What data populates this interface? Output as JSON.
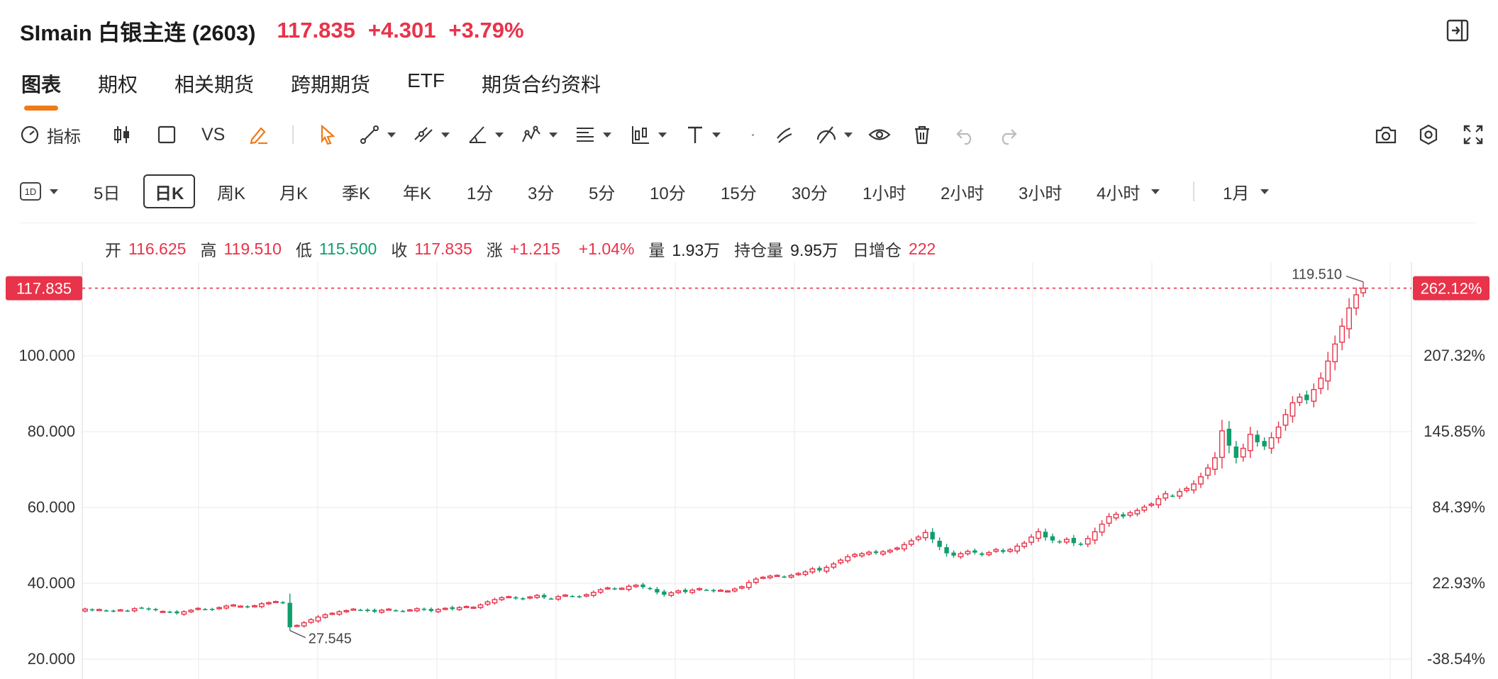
{
  "header": {
    "title": "SImain 白银主连 (2603)",
    "price": "117.835",
    "change": "+4.301",
    "change_pct": "+3.79%"
  },
  "tabs": [
    "图表",
    "期权",
    "相关期货",
    "跨期期货",
    "ETF",
    "期货合约资料"
  ],
  "toolbar": {
    "indicator_label": "指标",
    "vs_label": "VS"
  },
  "periods": {
    "interval_icon_text": "1D",
    "items": [
      "5日",
      "日K",
      "周K",
      "月K",
      "季K",
      "年K",
      "1分",
      "3分",
      "5分",
      "10分",
      "15分",
      "30分",
      "1小时",
      "2小时",
      "3小时",
      "4小时"
    ],
    "range": "1月"
  },
  "ohlc": {
    "open_label": "开",
    "open": "116.625",
    "high_label": "高",
    "high": "119.510",
    "low_label": "低",
    "low": "115.500",
    "close_label": "收",
    "close": "117.835",
    "change_label": "涨",
    "change": "+1.215",
    "change_pct": "+1.04%",
    "volume_label": "量",
    "volume": "1.93万",
    "oi_label": "持仓量",
    "oi": "9.95万",
    "oi_change_label": "日增仓",
    "oi_change": "222"
  },
  "colors": {
    "up": "#e8334a",
    "down": "#119e6d",
    "accent": "#f07a17"
  },
  "chart_data": {
    "type": "candlestick",
    "y_ticks_left": [
      "100.000",
      "80.000",
      "60.000",
      "40.000",
      "20.000"
    ],
    "y_ticks_right": [
      "207.32%",
      "145.85%",
      "84.39%",
      "22.93%",
      "-38.54%"
    ],
    "ylim": [
      17,
      126
    ],
    "current_price_label": "117.835",
    "current_pct_label": "262.12%",
    "max_annotation": "119.510",
    "min_annotation": "27.545",
    "closes": [
      33.2,
      32.9,
      33.1,
      32.8,
      32.6,
      33.0,
      32.7,
      33.3,
      33.5,
      33.1,
      32.9,
      32.6,
      32.4,
      32.1,
      32.5,
      32.9,
      33.4,
      33.2,
      33.0,
      33.6,
      34.0,
      34.3,
      34.0,
      33.7,
      34.1,
      34.6,
      34.9,
      35.2,
      34.8,
      28.4,
      28.9,
      29.6,
      30.4,
      31.1,
      31.7,
      32.1,
      32.5,
      32.8,
      33.2,
      33.0,
      32.7,
      32.5,
      32.9,
      33.2,
      32.8,
      32.6,
      33.0,
      33.3,
      33.0,
      32.7,
      33.1,
      33.4,
      33.2,
      33.6,
      33.9,
      33.7,
      34.3,
      35.1,
      35.7,
      36.2,
      36.5,
      36.0,
      35.8,
      36.4,
      36.8,
      36.3,
      35.9,
      36.5,
      36.9,
      36.6,
      36.4,
      37.0,
      37.6,
      38.3,
      38.8,
      38.5,
      38.7,
      39.2,
      39.5,
      39.0,
      38.5,
      37.6,
      37.0,
      37.5,
      38.0,
      37.7,
      38.2,
      38.6,
      38.3,
      37.9,
      38.2,
      38.0,
      38.5,
      39.1,
      40.2,
      41.1,
      41.6,
      41.9,
      42.1,
      41.7,
      42.1,
      42.6,
      43.0,
      43.8,
      43.4,
      44.2,
      45.1,
      46.1,
      47.0,
      47.6,
      47.8,
      48.2,
      48.0,
      48.3,
      48.7,
      49.3,
      50.2,
      51.2,
      52.2,
      53.4,
      51.6,
      49.6,
      47.9,
      47.3,
      47.8,
      48.4,
      48.1,
      47.5,
      48.1,
      48.9,
      48.3,
      48.9,
      49.8,
      50.6,
      52.2,
      53.6,
      52.1,
      51.3,
      50.8,
      51.6,
      50.6,
      50.2,
      51.8,
      53.6,
      55.6,
      57.6,
      58.2,
      57.6,
      58.6,
      59.2,
      60.1,
      60.9,
      62.3,
      63.6,
      63.1,
      64.2,
      65.0,
      66.2,
      68.1,
      70.4,
      73.1,
      80.2,
      76.3,
      73.1,
      75.6,
      79.3,
      77.2,
      76.1,
      78.4,
      81.2,
      84.5,
      87.6,
      89.1,
      88.3,
      91.1,
      94.1,
      98.6,
      103.1,
      107.8,
      112.6,
      116.1,
      117.835
    ],
    "up_color": "#e8334a",
    "down_color": "#119e6d"
  }
}
